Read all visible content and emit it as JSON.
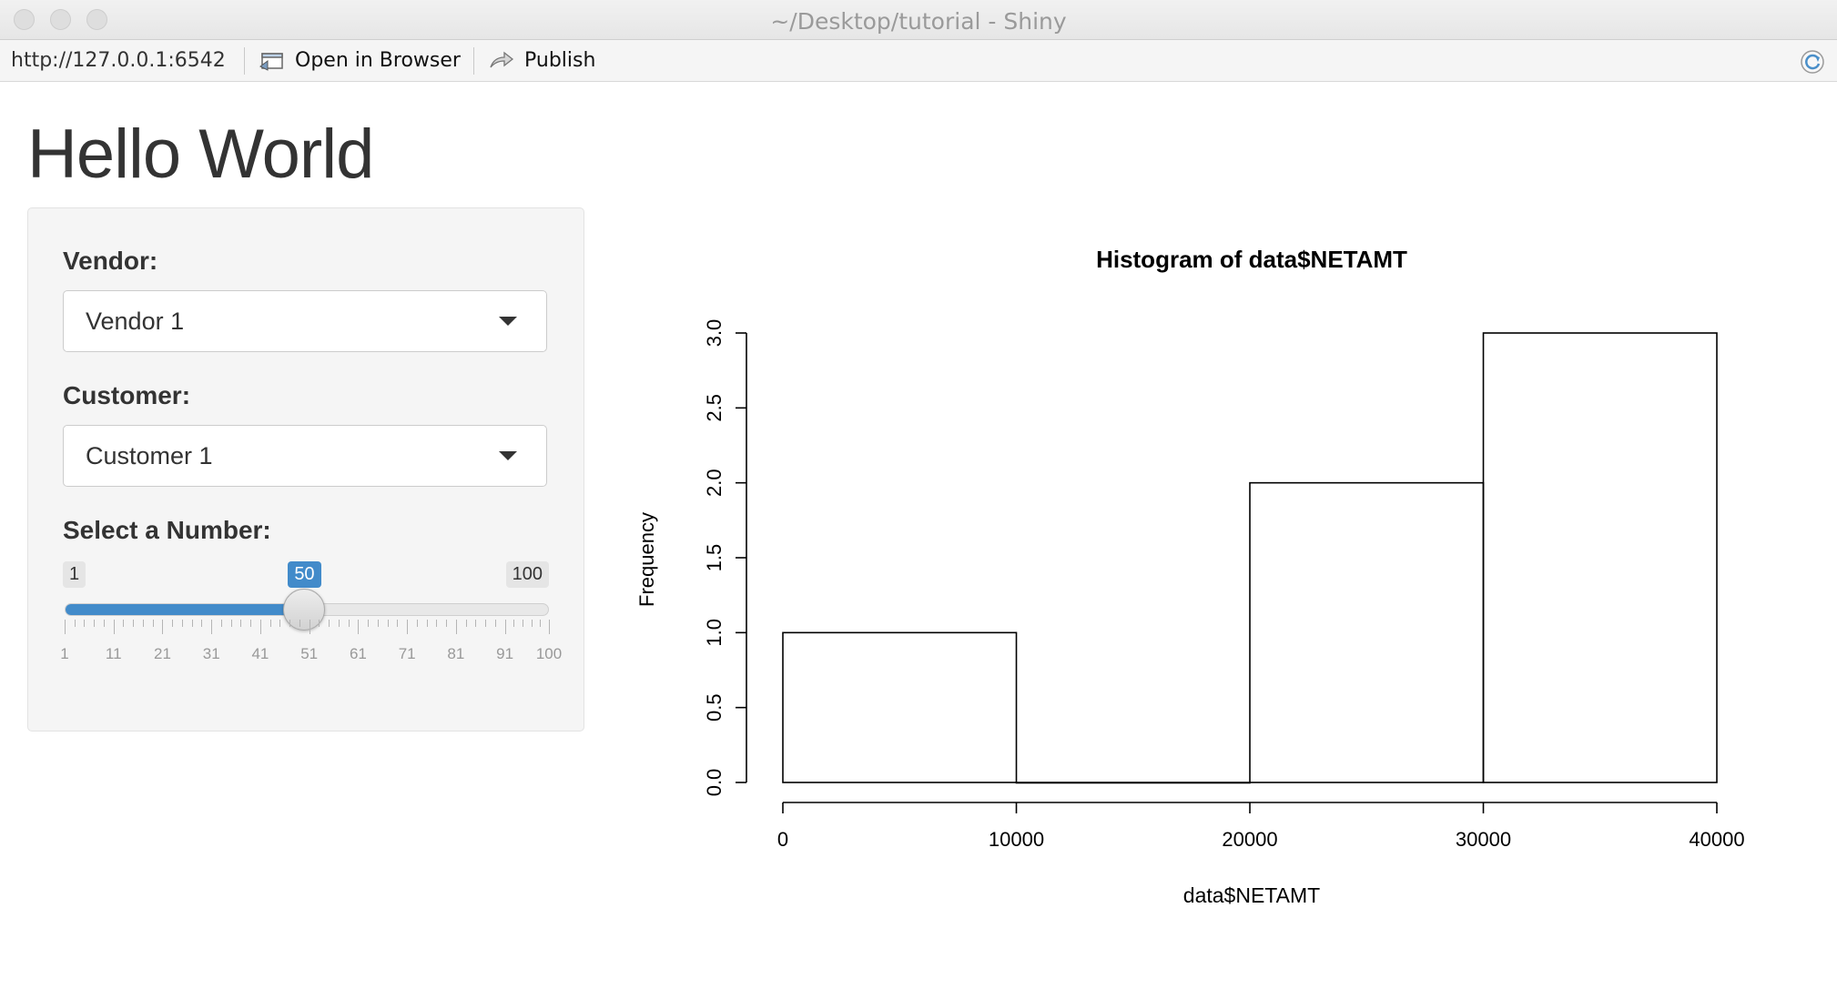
{
  "window": {
    "title": "~/Desktop/tutorial - Shiny"
  },
  "toolbar": {
    "url": "http://127.0.0.1:6542",
    "open_in_browser_label": "Open in Browser",
    "publish_label": "Publish"
  },
  "page": {
    "title": "Hello World"
  },
  "sidebar": {
    "vendor": {
      "label": "Vendor:",
      "value": "Vendor 1"
    },
    "customer": {
      "label": "Customer:",
      "value": "Customer 1"
    },
    "number": {
      "label": "Select a Number:",
      "min": 1,
      "max": 100,
      "value": 50,
      "min_label": "1",
      "max_label": "100",
      "value_label": "50",
      "tick_labels": [
        "1",
        "11",
        "21",
        "31",
        "41",
        "51",
        "61",
        "71",
        "81",
        "91",
        "100"
      ]
    }
  },
  "colors": {
    "accent": "#428bca"
  },
  "chart_data": {
    "type": "bar",
    "title": "Histogram of data$NETAMT",
    "xlabel": "data$NETAMT",
    "ylabel": "Frequency",
    "bins": [
      [
        0,
        10000
      ],
      [
        10000,
        20000
      ],
      [
        20000,
        30000
      ],
      [
        30000,
        40000
      ]
    ],
    "values": [
      1,
      0,
      2,
      3
    ],
    "x_ticks": [
      0,
      10000,
      20000,
      30000,
      40000
    ],
    "x_tick_labels": [
      "0",
      "10000",
      "20000",
      "30000",
      "40000"
    ],
    "y_ticks": [
      0.0,
      0.5,
      1.0,
      1.5,
      2.0,
      2.5,
      3.0
    ],
    "y_tick_labels": [
      "0.0",
      "0.5",
      "1.0",
      "1.5",
      "2.0",
      "2.5",
      "3.0"
    ],
    "xlim": [
      0,
      40000
    ],
    "ylim": [
      0,
      3
    ],
    "grid": false
  }
}
